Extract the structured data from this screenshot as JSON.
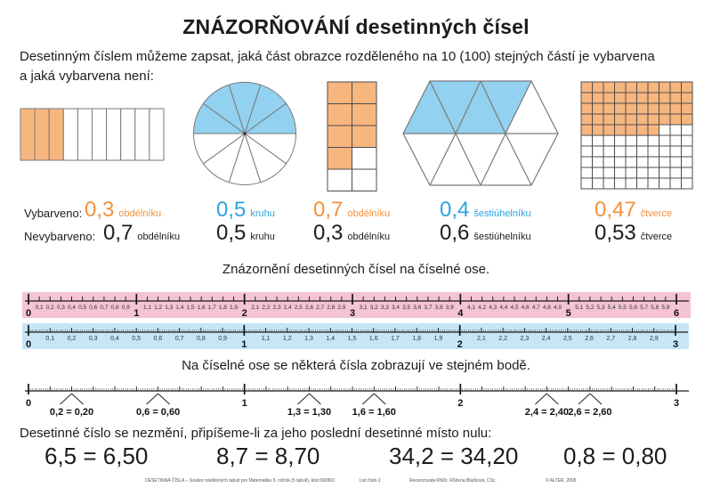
{
  "title": "ZNÁZORŇOVÁNÍ desetinných čísel",
  "intro": {
    "line1": "Desetinným číslem můžeme zapsat, jaká část obrazce rozděleného na 10 (100) stejných částí je vybarvena",
    "line2": "a jaká vybarvena není:"
  },
  "colors": {
    "orange_text": "#f3913a",
    "blue_text": "#2aa4de",
    "orange_fill": "#f8b67f",
    "blue_fill": "#92d1ef",
    "pink_band": "#f4c3d4",
    "blue_band": "#c6e6f6"
  },
  "shapes": {
    "strip_rectangle": {
      "kind": "strips",
      "total": 10,
      "filled": 3,
      "fill": "#f8b67f"
    },
    "circle": {
      "kind": "circle",
      "total": 10,
      "filled": 5,
      "fill": "#92d1ef"
    },
    "small_grid": {
      "kind": "grid",
      "cols": 2,
      "rows": 5,
      "filled": 7,
      "fill": "#f8b67f"
    },
    "hexagon": {
      "kind": "hexagon",
      "total": 10,
      "filled": 4,
      "fill": "#92d1ef"
    },
    "big_grid": {
      "kind": "grid",
      "cols": 10,
      "rows": 10,
      "filled": 47,
      "fill": "#f8b67f"
    }
  },
  "colored": {
    "label": "Vybarveno:",
    "items": [
      {
        "value": "0,3",
        "unit": "obdélníku",
        "color": "#f3913a"
      },
      {
        "value": "0,5",
        "unit": "kruhu",
        "color": "#2aa4de"
      },
      {
        "value": "0,7",
        "unit": "obdélníku",
        "color": "#f3913a"
      },
      {
        "value": "0,4",
        "unit": "šestiúhelníku",
        "color": "#2aa4de"
      },
      {
        "value": "0,47",
        "unit": "čtverce",
        "color": "#f3913a"
      }
    ]
  },
  "uncolored": {
    "label": "Nevybarveno:",
    "items": [
      {
        "value": "0,7",
        "unit": "obdélníku"
      },
      {
        "value": "0,5",
        "unit": "kruhu"
      },
      {
        "value": "0,3",
        "unit": "obdélníku"
      },
      {
        "value": "0,6",
        "unit": "šestiúhelníku"
      },
      {
        "value": "0,53",
        "unit": "čtverce"
      }
    ]
  },
  "numberline_heading": "Znázornění desetinných čísel na číselné ose.",
  "same_point_heading": "Na číselné ose se některá čísla zobrazují ve stejném bodě.",
  "numberlines": {
    "pink": {
      "min": 0,
      "max": 6,
      "tenth_labels": true,
      "hundredths": false,
      "band": "#f4c3d4",
      "tenth_font": 6.5
    },
    "blue": {
      "min": 0,
      "max": 3,
      "tenth_labels": true,
      "hundredths": true,
      "band": "#c6e6f6",
      "tenth_font": 7
    },
    "plain": {
      "min": 0,
      "max": 3,
      "tenth_labels": false,
      "hundredths": true,
      "band": null,
      "equal_points": [
        {
          "value": 0.2,
          "label": "0,2 = 0,20"
        },
        {
          "value": 0.6,
          "label": "0,6 = 0,60"
        },
        {
          "value": 1.3,
          "label": "1,3 = 1,30"
        },
        {
          "value": 1.6,
          "label": "1,6 = 1,60"
        },
        {
          "value": 2.4,
          "label": "2,4 = 2,40"
        },
        {
          "value": 2.6,
          "label": "2,6 = 2,60"
        }
      ]
    }
  },
  "zero_rule": {
    "text": "Desetinné číslo se nezmění, připíšeme-li za jeho poslední desetinné místo nulu:",
    "equations": [
      "6,5 = 6,50",
      "8,7 = 8,70",
      "34,2 = 34,20",
      "0,8 = 0,80"
    ]
  },
  "footer": {
    "series": "DESETINNÁ ČÍSLA – Soubor nástěnných tabulí pro Matematiku 5. ročník (5 tabulí), kód 092863",
    "sheet": "List číslo 2",
    "reviewer": "Recenzovala RNDr. Růžena Blažková, CSc.",
    "copyright": "© ALTER, 2005"
  }
}
